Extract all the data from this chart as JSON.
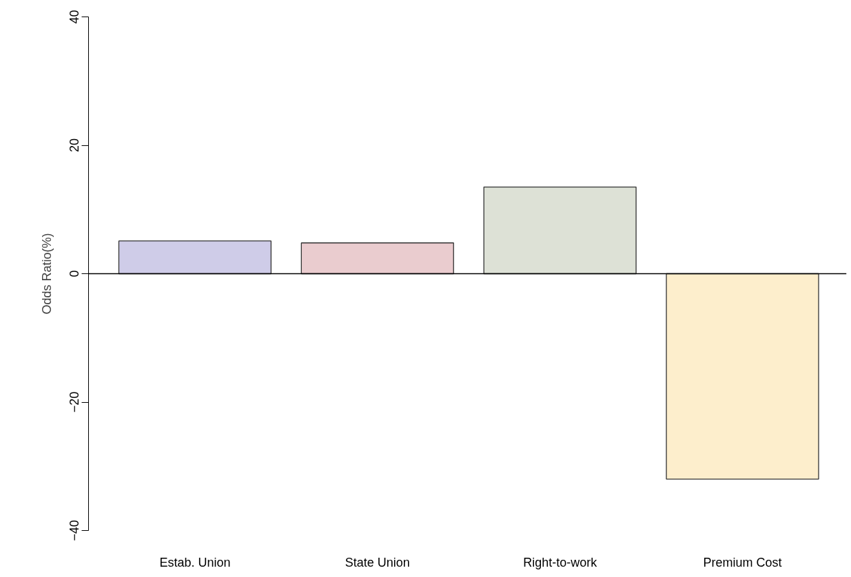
{
  "chart_data": {
    "type": "bar",
    "ylabel": "Odds Ratio(%)",
    "categories": [
      "Estab. Union",
      "State Union",
      "Right-to-work",
      "Premium Cost"
    ],
    "values": [
      5.1,
      4.8,
      13.5,
      -32.0
    ],
    "colors": [
      "#cfcce8",
      "#eacccf",
      "#dde1d6",
      "#fdeecc"
    ],
    "ylim": [
      -40,
      40
    ],
    "yticks": [
      -40,
      -20,
      0,
      20,
      40
    ],
    "ref_lines": [
      {
        "axis": "y",
        "value": 0,
        "color": "#000000"
      }
    ],
    "grid": false
  }
}
